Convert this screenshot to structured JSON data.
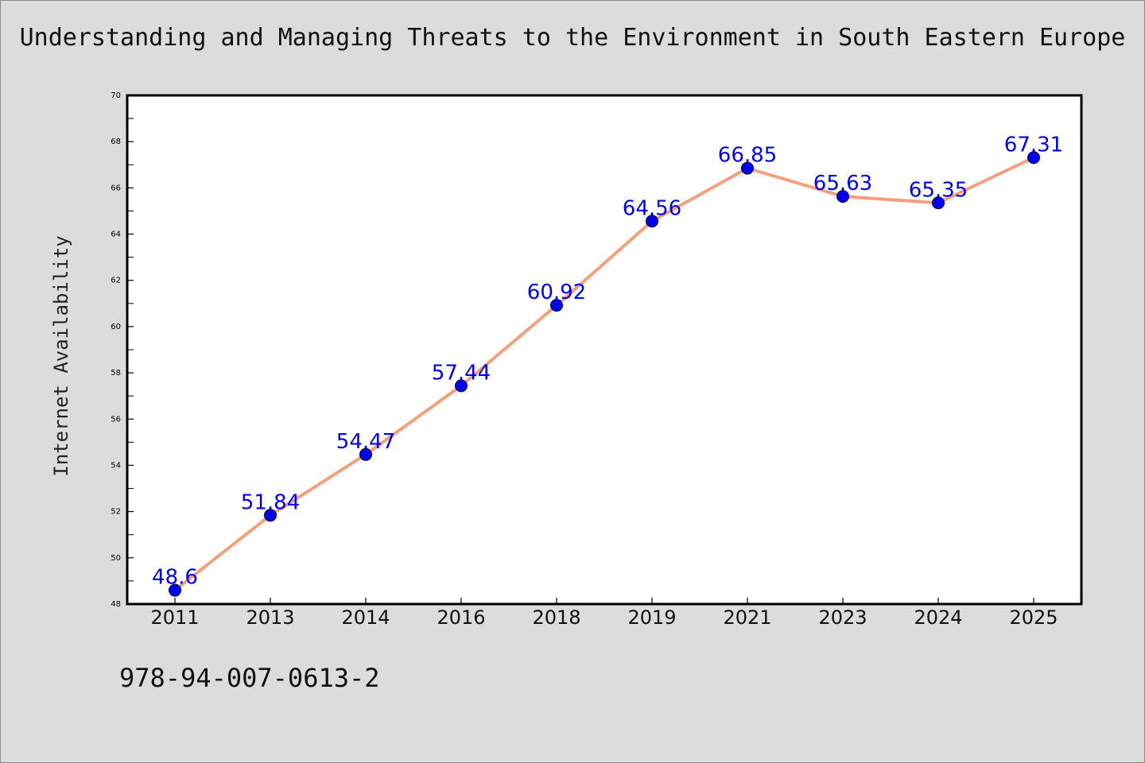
{
  "chart_data": {
    "type": "line",
    "title": "Understanding and Managing Threats to the Environment in South Eastern Europe",
    "xlabel": "",
    "ylabel": "Internet Availability",
    "categories": [
      "2011",
      "2013",
      "2014",
      "2016",
      "2018",
      "2019",
      "2021",
      "2023",
      "2024",
      "2025"
    ],
    "series": [
      {
        "values": [
          48.6,
          51.84,
          54.47,
          57.44,
          60.92,
          64.56,
          66.85,
          65.63,
          65.35,
          67.31
        ]
      }
    ],
    "data_labels": [
      "48.6",
      "51.84",
      "54.47",
      "57.44",
      "60.92",
      "64.56",
      "66.85",
      "65.63",
      "65.35",
      "67.31"
    ],
    "ylim": [
      48,
      70
    ],
    "yticks": [
      "48",
      "50",
      "52",
      "54",
      "56",
      "58",
      "60",
      "62",
      "64",
      "66",
      "68",
      "70"
    ],
    "grid": false,
    "legend": "none",
    "colors": {
      "line": "#f4a07e",
      "marker": "#0000ee",
      "label": "#0000ee",
      "background": "#dcdcdc",
      "plot": "#ffffff"
    }
  },
  "footer": {
    "isbn": "978-94-007-0613-2"
  }
}
